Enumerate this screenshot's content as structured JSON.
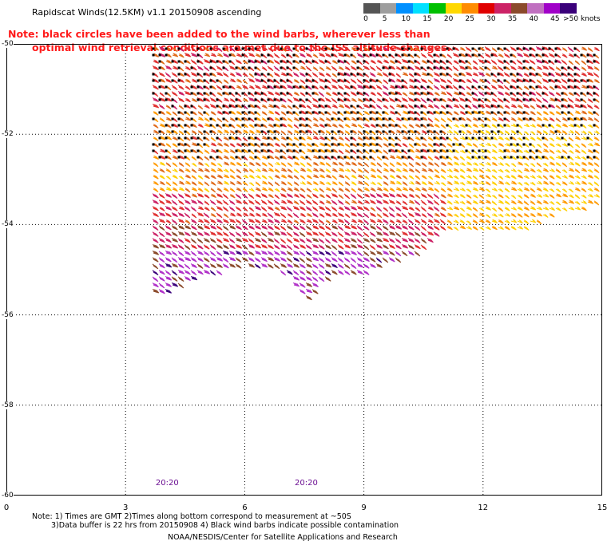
{
  "title": "Rapidscat Winds(12.5KM) v1.1 20150908 ascending",
  "note": {
    "line1": "Note: black circles have been added to the wind barbs, wherever less than",
    "line2": "optimal wind retrieval conditions are met due to the ISS altitude changes."
  },
  "colorbar": {
    "labels": [
      "0",
      "5",
      "10",
      "15",
      "20",
      "25",
      "30",
      "35",
      "40",
      "45",
      ">50 knots"
    ],
    "colors": [
      "#555555",
      "#9e9e9e",
      "#0090ff",
      "#00e0ff",
      "#00c000",
      "#ffd800",
      "#ff8c00",
      "#e00000",
      "#cc2266",
      "#8b4a2b",
      "#c070c0",
      "#a000c8",
      "#3a007a"
    ]
  },
  "axes": {
    "x_ticks": [
      "0",
      "3",
      "6",
      "9",
      "12",
      "15"
    ],
    "y_ticks": [
      "-50",
      "-52",
      "-54",
      "-56",
      "-58",
      "-60"
    ],
    "xlim": [
      0,
      15
    ],
    "ylim": [
      -60,
      -50
    ],
    "grid": true
  },
  "time_labels": [
    {
      "text": "20:20",
      "lon": 4.0
    },
    {
      "text": "20:20",
      "lon": 7.5
    }
  ],
  "footer": {
    "line1": "Note: 1) Times are GMT 2)Times along bottom correspond to measurement at ~50S",
    "line2": "3)Data buffer is 22 hrs from 20150908 4) Black wind barbs indicate possible contamination",
    "credit": "NOAA/NESDIS/Center for Satellite Applications and Research"
  },
  "map": {
    "lat_min": -60,
    "lat_max": -50,
    "lon_min": 0,
    "lon_max": 15,
    "swath": {
      "lon_start": 3.7,
      "south_edge": [
        [
          3.7,
          -55.6
        ],
        [
          4.8,
          -55.2
        ],
        [
          5.5,
          -55.0
        ],
        [
          6.0,
          -54.9
        ],
        [
          6.5,
          -55.0
        ],
        [
          7.0,
          -55.1
        ],
        [
          7.5,
          -55.7
        ],
        [
          8.0,
          -55.2
        ],
        [
          9.0,
          -55.1
        ],
        [
          9.5,
          -54.9
        ],
        [
          10.5,
          -54.6
        ],
        [
          10.8,
          -54.3
        ],
        [
          11.0,
          -54.1
        ],
        [
          13.0,
          -54.1
        ],
        [
          14.0,
          -53.7
        ],
        [
          15.0,
          -53.6
        ]
      ]
    },
    "wind_bands": [
      {
        "lat_top": -50.0,
        "lat_bottom": -51.5,
        "knots": 35
      },
      {
        "lat_top": -51.5,
        "lat_bottom": -52.6,
        "knots": 30
      },
      {
        "lat_top": -52.6,
        "lat_bottom": -53.3,
        "knots": 28
      },
      {
        "lat_top": -53.3,
        "lat_bottom": -54.0,
        "knots": 36
      },
      {
        "lat_top": -54.0,
        "lat_bottom": -54.5,
        "knots": 40
      },
      {
        "lat_top": -54.5,
        "lat_bottom": -56.0,
        "knots": 47
      }
    ],
    "east_patch": {
      "lon_from": 11.0,
      "lat_top": -51.7,
      "lat_bottom": -54.2,
      "knots": 25
    }
  }
}
